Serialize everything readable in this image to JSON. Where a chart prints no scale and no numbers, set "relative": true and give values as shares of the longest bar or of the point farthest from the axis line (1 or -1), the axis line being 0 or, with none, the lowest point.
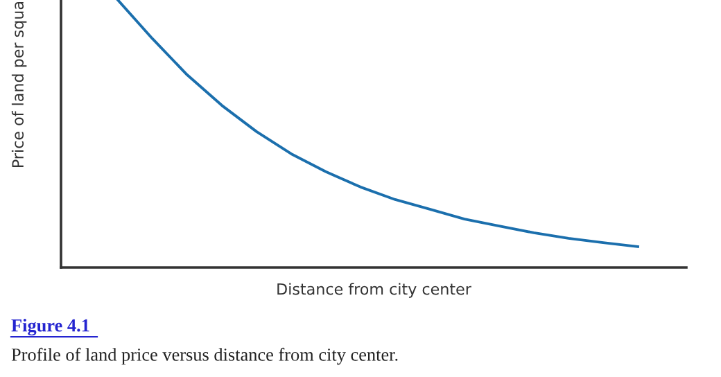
{
  "chart_data": {
    "type": "line",
    "relative": true,
    "xlabel": "Distance from city center",
    "ylabel": "Price of land per squa",
    "categories": [
      null,
      null,
      null,
      null,
      null,
      null,
      null,
      null,
      null,
      null,
      null,
      null,
      null,
      null,
      null,
      null
    ],
    "series": [
      {
        "color": "#1b6fad",
        "values": [
          1,
          0.855,
          0.72,
          0.606,
          0.508,
          0.425,
          0.358,
          0.301,
          0.254,
          0.218,
          0.181,
          0.155,
          0.13,
          0.109,
          0.093,
          0.078
        ]
      }
    ],
    "annotations": [
      "Figure 4.1",
      "Profile of land price versus distance from city center."
    ],
    "tick_labels": false
  }
}
